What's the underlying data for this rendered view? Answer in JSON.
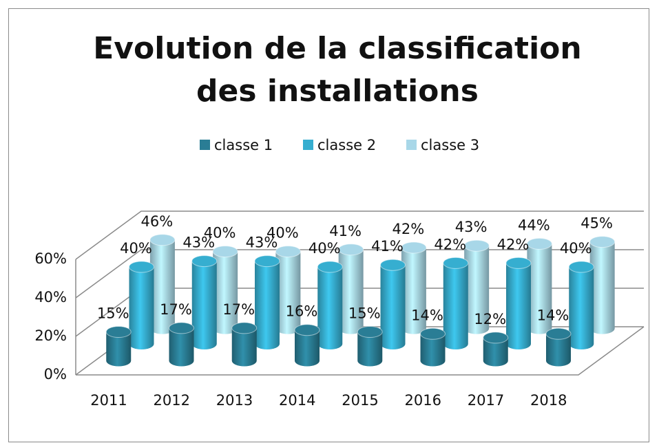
{
  "chart_data": {
    "type": "bar3d",
    "title": [
      "Evolution de la classification",
      "des installations"
    ],
    "categories": [
      "2011",
      "2012",
      "2013",
      "2014",
      "2015",
      "2016",
      "2017",
      "2018"
    ],
    "series": [
      {
        "name": "classe 1",
        "color": "#2a7d95",
        "values": [
          15,
          17,
          17,
          16,
          15,
          14,
          12,
          14
        ],
        "value_labels": [
          "15%",
          "17%",
          "17%",
          "16%",
          "15%",
          "14%",
          "12%",
          "14%"
        ]
      },
      {
        "name": "classe 2",
        "color": "#36aed0",
        "values": [
          40,
          43,
          43,
          40,
          41,
          42,
          42,
          40
        ],
        "value_labels": [
          "40%",
          "43%",
          "43%",
          "40%",
          "41%",
          "42%",
          "42%",
          "40%"
        ]
      },
      {
        "name": "classe 3",
        "color": "#a8d7e8",
        "values": [
          46,
          40,
          40,
          41,
          42,
          43,
          44,
          45
        ],
        "value_labels": [
          "46%",
          "40%",
          "40%",
          "41%",
          "42%",
          "43%",
          "44%",
          "45%"
        ]
      }
    ],
    "ylim": [
      0,
      60
    ],
    "yticks": [
      {
        "value": 0,
        "label": "0%"
      },
      {
        "value": 20,
        "label": "20%"
      },
      {
        "value": 40,
        "label": "40%"
      },
      {
        "value": 60,
        "label": "60%"
      }
    ],
    "grid": true,
    "legend": "top"
  }
}
